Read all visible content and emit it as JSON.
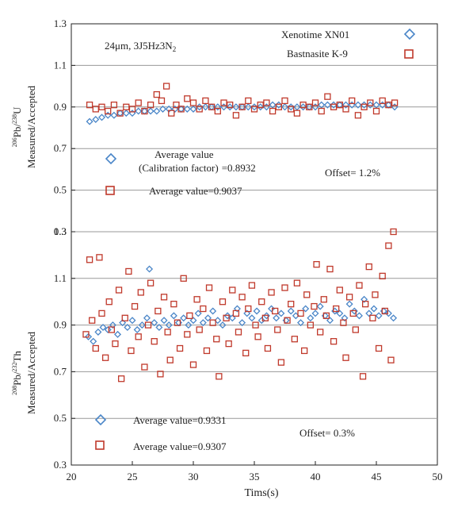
{
  "chart_data": [
    {
      "type": "scatter",
      "panel": "top",
      "annotation": "24μm, 3J5Hz3N",
      "annotation_sub": "2",
      "ylabel_iso_top": "206",
      "ylabel_mid": "Pb/",
      "ylabel_iso_bottom": "238",
      "ylabel_end": "U",
      "ylabel_line2": "Measured/Accepted",
      "xlim": [
        20,
        50
      ],
      "ylim": [
        0.3,
        1.3
      ],
      "yticks": [
        "0.3",
        "0.5",
        "0.7",
        "0.9",
        "1.1",
        "1.3"
      ],
      "grid": "horizontal",
      "legend_placement": "top-right",
      "series": [
        {
          "name": "Xenotime XN01",
          "marker": "diamond",
          "color": "#4a86c8",
          "x": [
            21.5,
            22.0,
            22.5,
            23.0,
            23.5,
            24.0,
            24.5,
            25.0,
            25.5,
            26.0,
            26.5,
            27.0,
            27.5,
            28.0,
            28.5,
            29.0,
            29.5,
            30.0,
            30.5,
            31.0,
            31.5,
            32.0,
            32.5,
            33.0,
            33.5,
            34.0,
            34.5,
            35.0,
            35.5,
            36.0,
            36.5,
            37.0,
            37.5,
            38.0,
            38.5,
            39.0,
            39.5,
            40.0,
            40.5,
            41.0,
            41.5,
            42.0,
            42.5,
            43.0,
            43.5,
            44.0,
            44.5,
            45.0,
            45.5,
            46.0,
            46.5
          ],
          "y": [
            0.83,
            0.84,
            0.85,
            0.86,
            0.86,
            0.87,
            0.87,
            0.87,
            0.88,
            0.88,
            0.88,
            0.88,
            0.89,
            0.89,
            0.89,
            0.89,
            0.89,
            0.89,
            0.9,
            0.9,
            0.9,
            0.9,
            0.9,
            0.9,
            0.9,
            0.9,
            0.9,
            0.9,
            0.9,
            0.9,
            0.91,
            0.91,
            0.9,
            0.9,
            0.9,
            0.9,
            0.9,
            0.9,
            0.91,
            0.91,
            0.91,
            0.91,
            0.91,
            0.91,
            0.91,
            0.91,
            0.91,
            0.91,
            0.91,
            0.91,
            0.9
          ]
        },
        {
          "name": "Bastnasite K-9",
          "marker": "square",
          "color": "#c0392b",
          "x": [
            21.5,
            22.0,
            22.5,
            23.0,
            23.5,
            24.0,
            24.5,
            25.0,
            25.5,
            26.0,
            26.5,
            27.0,
            27.4,
            27.8,
            28.2,
            28.6,
            29.0,
            29.5,
            30.0,
            30.5,
            31.0,
            31.5,
            32.0,
            32.5,
            33.0,
            33.5,
            34.0,
            34.5,
            35.0,
            35.5,
            36.0,
            36.5,
            37.0,
            37.5,
            38.0,
            38.5,
            39.0,
            39.5,
            40.0,
            40.5,
            41.0,
            41.5,
            42.0,
            42.5,
            43.0,
            43.5,
            44.0,
            44.5,
            45.0,
            45.5,
            46.0,
            46.5
          ],
          "y": [
            0.91,
            0.89,
            0.9,
            0.88,
            0.91,
            0.87,
            0.9,
            0.89,
            0.92,
            0.88,
            0.91,
            0.96,
            0.93,
            1.0,
            0.87,
            0.91,
            0.89,
            0.94,
            0.92,
            0.89,
            0.93,
            0.9,
            0.88,
            0.92,
            0.91,
            0.86,
            0.9,
            0.93,
            0.89,
            0.91,
            0.92,
            0.88,
            0.9,
            0.93,
            0.89,
            0.87,
            0.91,
            0.9,
            0.92,
            0.88,
            0.95,
            0.9,
            0.91,
            0.89,
            0.93,
            0.86,
            0.9,
            0.92,
            0.88,
            0.93,
            0.91,
            0.92
          ]
        }
      ],
      "legend_items": [
        {
          "label": "Xenotime XN01",
          "marker": "diamond"
        },
        {
          "label": "Bastnasite K-9",
          "marker": "square"
        }
      ],
      "stats": [
        {
          "marker": "diamond",
          "line1": "Average value",
          "line2": "(Calibration factor)",
          "value": "=0.8932"
        },
        {
          "marker": "square",
          "line1": "Average value=0.9037"
        }
      ],
      "offset_text": "Offset= 1.2%"
    },
    {
      "type": "scatter",
      "panel": "bottom",
      "ylabel_iso_top": "208",
      "ylabel_mid": "Pb/",
      "ylabel_iso_bottom": "232",
      "ylabel_end": "Th",
      "ylabel_line2": "Measured/Accepted",
      "xlabel": "Tims(s)",
      "xticks": [
        "20",
        "25",
        "30",
        "35",
        "40",
        "45",
        "50"
      ],
      "xlim": [
        20,
        50
      ],
      "ylim": [
        0.3,
        1.3
      ],
      "yticks": [
        "0.3",
        "0.5",
        "0.7",
        "0.9",
        "1.1",
        "1.3"
      ],
      "grid": "horizontal",
      "series": [
        {
          "name": "Xenotime XN01",
          "marker": "diamond",
          "color": "#4a86c8",
          "x": [
            21.4,
            21.8,
            22.2,
            22.6,
            23.0,
            23.4,
            23.8,
            24.2,
            24.6,
            25.0,
            25.4,
            25.8,
            26.2,
            26.4,
            26.8,
            27.2,
            27.6,
            28.0,
            28.4,
            28.8,
            29.2,
            29.6,
            30.0,
            30.4,
            30.8,
            31.2,
            31.6,
            32.0,
            32.4,
            32.8,
            33.2,
            33.6,
            34.0,
            34.4,
            34.8,
            35.2,
            35.6,
            36.0,
            36.4,
            36.8,
            37.2,
            37.6,
            38.0,
            38.4,
            38.8,
            39.2,
            39.6,
            40.0,
            40.4,
            40.8,
            41.2,
            41.6,
            42.0,
            42.4,
            42.8,
            43.2,
            43.6,
            44.0,
            44.4,
            44.8,
            45.2,
            45.6,
            46.0,
            46.4
          ],
          "y": [
            0.85,
            0.83,
            0.87,
            0.89,
            0.88,
            0.9,
            0.86,
            0.91,
            0.89,
            0.92,
            0.88,
            0.9,
            0.93,
            1.14,
            0.91,
            0.89,
            0.92,
            0.9,
            0.94,
            0.91,
            0.93,
            0.9,
            0.92,
            0.95,
            0.91,
            0.93,
            0.96,
            0.92,
            0.9,
            0.94,
            0.93,
            0.97,
            0.91,
            0.95,
            0.93,
            0.96,
            0.92,
            0.94,
            0.97,
            0.93,
            0.95,
            0.92,
            0.96,
            0.94,
            0.91,
            0.97,
            0.93,
            0.95,
            0.98,
            0.94,
            0.92,
            0.96,
            0.95,
            0.93,
            0.99,
            0.96,
            0.94,
            1.01,
            0.95,
            0.97,
            0.94,
            0.96,
            0.95,
            0.93
          ]
        },
        {
          "name": "Bastnasite K-9",
          "marker": "square",
          "color": "#c0392b",
          "x": [
            21.2,
            21.5,
            21.7,
            22.0,
            22.3,
            22.5,
            22.8,
            23.1,
            23.3,
            23.6,
            23.9,
            24.1,
            24.4,
            24.7,
            24.9,
            25.2,
            25.5,
            25.7,
            26.0,
            26.3,
            26.5,
            26.8,
            27.1,
            27.3,
            27.6,
            27.9,
            28.1,
            28.4,
            28.7,
            28.9,
            29.2,
            29.5,
            29.7,
            30.0,
            30.3,
            30.5,
            30.8,
            31.1,
            31.3,
            31.6,
            31.9,
            32.1,
            32.4,
            32.7,
            32.9,
            33.2,
            33.5,
            33.7,
            34.0,
            34.3,
            34.5,
            34.8,
            35.1,
            35.3,
            35.6,
            35.9,
            36.1,
            36.4,
            36.7,
            36.9,
            37.2,
            37.5,
            37.7,
            38.0,
            38.3,
            38.5,
            38.8,
            39.1,
            39.3,
            39.6,
            39.9,
            40.1,
            40.4,
            40.7,
            40.9,
            41.2,
            41.5,
            41.7,
            42.0,
            42.3,
            42.5,
            42.8,
            43.1,
            43.3,
            43.6,
            43.9,
            44.1,
            44.4,
            44.7,
            44.9,
            45.2,
            45.5,
            45.7,
            46.0,
            46.2,
            46.4
          ],
          "y": [
            0.86,
            1.18,
            0.92,
            0.8,
            1.19,
            0.95,
            0.76,
            1.0,
            0.88,
            0.82,
            1.05,
            0.67,
            0.93,
            1.13,
            0.79,
            0.98,
            0.85,
            1.04,
            0.72,
            0.9,
            1.08,
            0.83,
            0.96,
            0.69,
            1.02,
            0.87,
            0.75,
            0.99,
            0.91,
            0.8,
            1.1,
            0.86,
            0.94,
            0.73,
            1.01,
            0.88,
            0.97,
            0.79,
            1.06,
            0.91,
            0.84,
            0.68,
            1.0,
            0.93,
            0.82,
            1.05,
            0.95,
            0.87,
            1.02,
            0.78,
            0.97,
            1.07,
            0.9,
            0.85,
            1.0,
            0.93,
            0.8,
            1.04,
            0.96,
            0.88,
            0.74,
            1.06,
            0.92,
            0.99,
            0.84,
            1.08,
            0.95,
            0.79,
            1.03,
            0.9,
            0.98,
            1.16,
            0.87,
            1.01,
            0.94,
            1.14,
            0.83,
            0.97,
            1.05,
            0.91,
            0.76,
            1.02,
            0.95,
            0.88,
            1.07,
            0.68,
            0.99,
            1.15,
            0.93,
            1.03,
            0.8,
            1.11,
            0.96,
            1.24,
            0.75,
            1.3
          ]
        }
      ],
      "stats": [
        {
          "marker": "diamond",
          "line1": "Average value=0.9331"
        },
        {
          "marker": "square",
          "line1": "Average value=0.9307"
        }
      ],
      "offset_text": "Offset= 0.3%"
    }
  ]
}
